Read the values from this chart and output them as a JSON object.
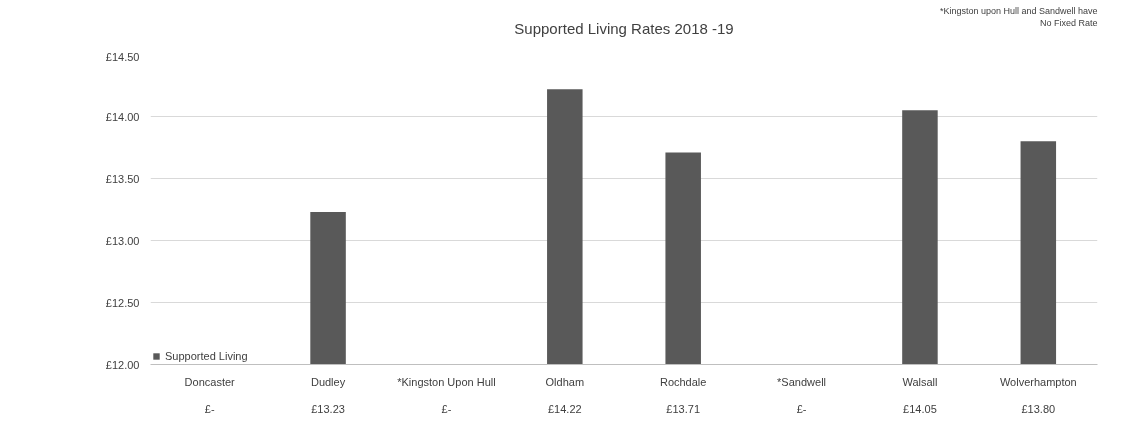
{
  "chart_data": {
    "type": "bar",
    "title": "Supported Living Rates 2018 -19",
    "categories": [
      "Doncaster",
      "Dudley",
      "*Kingston Upon Hull",
      "Oldham",
      "Rochdale",
      "*Sandwell",
      "Walsall",
      "Wolverhampton"
    ],
    "series": [
      {
        "name": "Supported Living",
        "color": "#595959",
        "values": [
          null,
          13.23,
          null,
          14.22,
          13.71,
          null,
          14.05,
          13.8
        ],
        "value_labels": [
          "£-",
          "£13.23",
          "£-",
          "£14.22",
          "£13.71",
          "£-",
          "£14.05",
          "£13.80"
        ]
      }
    ],
    "ylim": [
      12,
      14.5
    ],
    "yticks": [
      {
        "value": 12,
        "label": "£12.00"
      },
      {
        "value": 12.5,
        "label": "£12.50"
      },
      {
        "value": 13,
        "label": "£13.00"
      },
      {
        "value": 13.5,
        "label": "£13.50"
      },
      {
        "value": 14,
        "label": "£14.00"
      },
      {
        "value": 14.5,
        "label": "£14.50"
      }
    ],
    "grid": "y",
    "legend": "bottom left",
    "annotations": [
      "*Kingston upon Hull and Sandwell have\nNo Fixed Rate"
    ]
  }
}
